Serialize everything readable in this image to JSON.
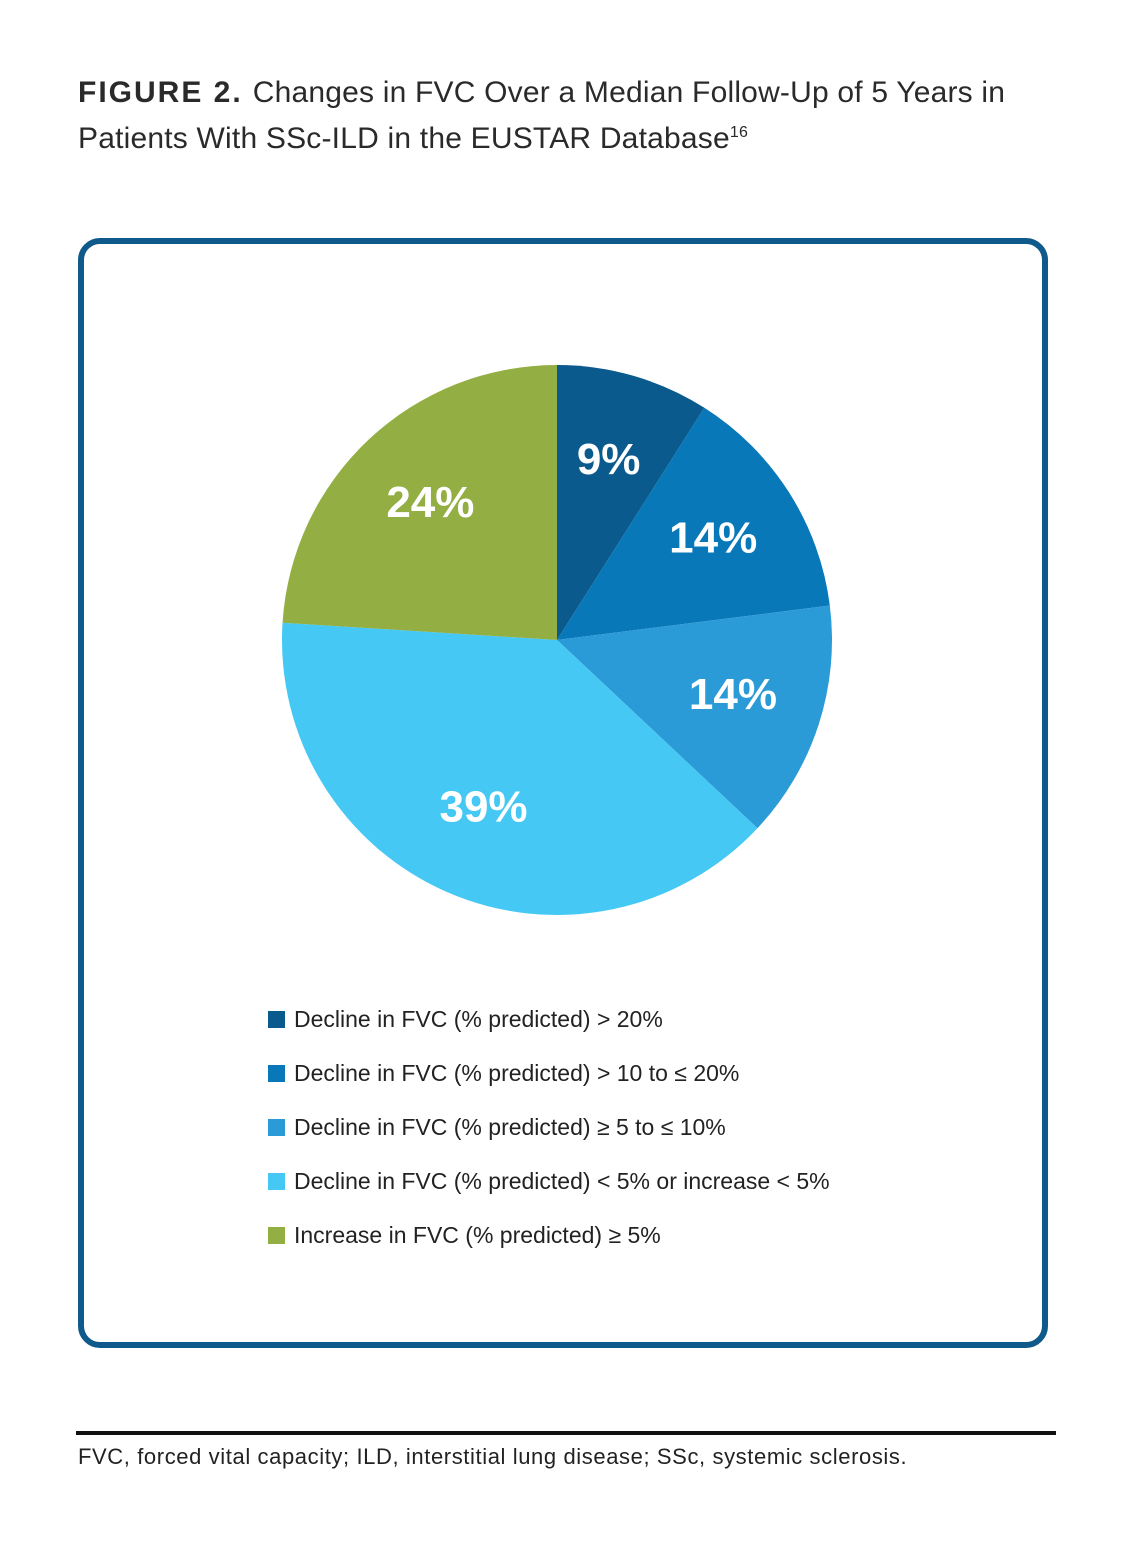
{
  "figure": {
    "label": "FIGURE 2.",
    "title": "Changes in FVC Over a Median Follow-Up of 5 Years in Patients With SSc-ILD in the EUSTAR Database",
    "title_superscript": "16"
  },
  "chart_data": {
    "type": "pie",
    "title": "",
    "slices": [
      {
        "label": "Decline in FVC (% predicted) > 20%",
        "value": 9,
        "value_label": "9%",
        "color": "#0b5a8e"
      },
      {
        "label": "Decline in FVC (% predicted) > 10 to ≤ 20%",
        "value": 14,
        "value_label": "14%",
        "color": "#0878b9"
      },
      {
        "label": "Decline in FVC (% predicted) ≥ 5 to ≤ 10%",
        "value": 14,
        "value_label": "14%",
        "color": "#2a9bd7"
      },
      {
        "label": "Decline in FVC (% predicted) < 5% or increase < 5%",
        "value": 39,
        "value_label": "39%",
        "color": "#45c8f4"
      },
      {
        "label": "Increase in FVC (% predicted) ≥ 5%",
        "value": 24,
        "value_label": "24%",
        "color": "#93ae42"
      }
    ],
    "start": "12 o'clock",
    "direction": "clockwise",
    "legend_position": "bottom"
  },
  "footnote": "FVC, forced vital capacity; ILD, interstitial lung disease; SSc, systemic sclerosis.",
  "colors": {
    "frame_border": "#0f5a8a",
    "rule": "#111111"
  }
}
